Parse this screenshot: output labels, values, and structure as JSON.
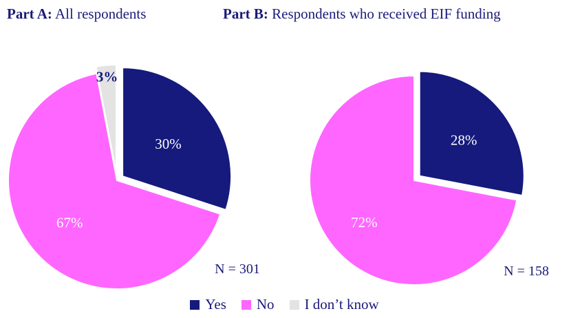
{
  "chart_data": [
    {
      "type": "pie",
      "title_part": "Part A:",
      "title_desc": "All respondents",
      "n_label": "N = 301",
      "slices": [
        {
          "label": "Yes",
          "value": 30,
          "value_label": "30%"
        },
        {
          "label": "No",
          "value": 67,
          "value_label": "67%"
        },
        {
          "label": "I don’t know",
          "value": 3,
          "value_label": "3%"
        }
      ]
    },
    {
      "type": "pie",
      "title_part": "Part B:",
      "title_desc": "Respondents who received EIF funding",
      "n_label": "N = 158",
      "slices": [
        {
          "label": "Yes",
          "value": 28,
          "value_label": "28%"
        },
        {
          "label": "No",
          "value": 72,
          "value_label": "72%"
        }
      ]
    }
  ],
  "legend": [
    {
      "label": "Yes",
      "color": "#151a7c"
    },
    {
      "label": "No",
      "color": "#ff66ff"
    },
    {
      "label": "I don’t know",
      "color": "#e3e3e3"
    }
  ],
  "colors": {
    "Yes": "#151a7c",
    "No": "#ff66ff",
    "I don’t know": "#e3e3e3",
    "Yes_text": "#ffffff",
    "No_text": "#ffffff",
    "I don’t know_text": "#151a7c"
  }
}
